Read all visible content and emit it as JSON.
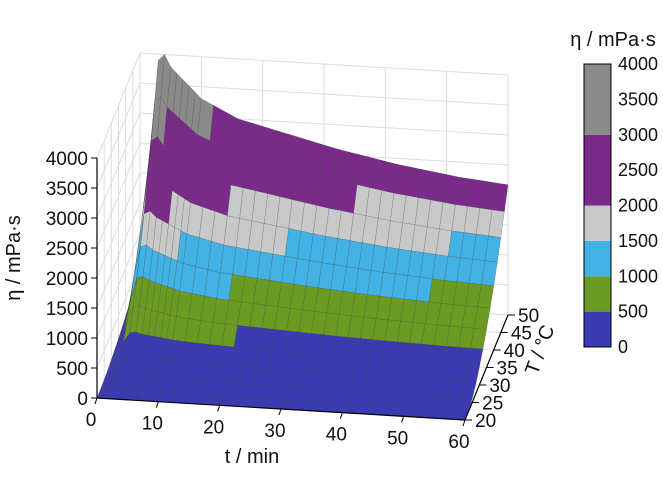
{
  "chart_data": {
    "type": "surface3d",
    "title": "",
    "zlabel": "η / mPa·s",
    "zlim": [
      0,
      4000
    ],
    "zticks": [
      "0",
      "500",
      "1000",
      "1500",
      "2000",
      "2500",
      "3000",
      "3500",
      "4000"
    ],
    "xlabel": "t / min",
    "xlim": [
      0,
      60
    ],
    "xticks": [
      "0",
      "10",
      "20",
      "30",
      "40",
      "50",
      "60"
    ],
    "ylabel": "T / °C",
    "ylim": [
      20,
      50
    ],
    "yticks": [
      "20",
      "25",
      "30",
      "35",
      "40",
      "45",
      "50"
    ],
    "grid": true,
    "colorbar": {
      "title": "η / mPa·s",
      "ticks": [
        "0",
        "500",
        "1000",
        "1500",
        "2000",
        "2500",
        "3000",
        "3500",
        "4000"
      ],
      "bands": [
        {
          "from": 0,
          "to": 500,
          "color": "#3a3bb2"
        },
        {
          "from": 500,
          "to": 1000,
          "color": "#6b9b22"
        },
        {
          "from": 1000,
          "to": 1500,
          "color": "#42b1e3"
        },
        {
          "from": 1500,
          "to": 2000,
          "color": "#c9c9c9"
        },
        {
          "from": 2000,
          "to": 3000,
          "color": "#7a2b8a"
        },
        {
          "from": 3000,
          "to": 4000,
          "color": "#8a8a8a"
        }
      ]
    },
    "surface": {
      "t_values": [
        0,
        0.5,
        1,
        1.5,
        2,
        3,
        4,
        5,
        6,
        7,
        8,
        9,
        10,
        12,
        14,
        16,
        18,
        20,
        22,
        24,
        26,
        28,
        30,
        32,
        34,
        36,
        38,
        40,
        42,
        44,
        46,
        48,
        50,
        52,
        54,
        56,
        58,
        60
      ],
      "T_values": [
        20,
        22.5,
        25,
        27.5,
        30,
        32.5,
        35,
        37.5,
        40,
        42.5,
        45,
        47.5,
        50
      ],
      "eta_at_T50": [
        400,
        700,
        1200,
        1900,
        2700,
        3900,
        4000,
        3800,
        3700,
        3600,
        3500,
        3400,
        3300,
        3200,
        3100,
        3000,
        2950,
        2900,
        2850,
        2800,
        2750,
        2700,
        2650,
        2600,
        2560,
        2520,
        2480,
        2440,
        2400,
        2370,
        2340,
        2310,
        2280,
        2250,
        2230,
        2210,
        2190,
        2170
      ],
      "eta_min": 0,
      "note_rise_from_T": 22
    }
  }
}
